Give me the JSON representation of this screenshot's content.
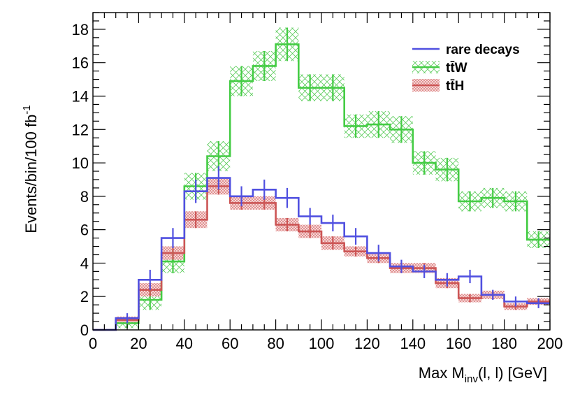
{
  "chart_data": {
    "type": "histogram-step",
    "title": "",
    "xlabel": "Max M",
    "xlabel_sub": "inv",
    "xlabel_tail": "(l, l) [GeV]",
    "ylabel": "Events/bin/100 fb",
    "ylabel_sup": "-1",
    "xlim": [
      0,
      200
    ],
    "ylim": [
      0,
      19
    ],
    "bin_width": 10,
    "bin_edges": [
      0,
      10,
      20,
      30,
      40,
      50,
      60,
      70,
      80,
      90,
      100,
      110,
      120,
      130,
      140,
      150,
      160,
      170,
      180,
      190,
      200
    ],
    "x_ticks": [
      0,
      20,
      40,
      60,
      80,
      100,
      120,
      140,
      160,
      180,
      200
    ],
    "x_tick_labels": [
      "0",
      "20",
      "40",
      "60",
      "80",
      "100",
      "120",
      "140",
      "160",
      "180",
      "200"
    ],
    "y_ticks": [
      0,
      2,
      4,
      6,
      8,
      10,
      12,
      14,
      16,
      18
    ],
    "y_tick_labels": [
      "0",
      "2",
      "4",
      "6",
      "8",
      "10",
      "12",
      "14",
      "16",
      "18"
    ],
    "legend_position": "top-right",
    "series": [
      {
        "name": "rare decays",
        "display": "rare decays",
        "color": "#5050e0",
        "band": "none",
        "values": [
          0.0,
          0.7,
          3.0,
          5.5,
          8.3,
          9.1,
          8.0,
          8.4,
          7.9,
          6.8,
          6.4,
          5.6,
          4.6,
          3.8,
          3.5,
          3.0,
          3.2,
          2.1,
          1.7,
          1.6
        ],
        "errors": [
          0.0,
          0.3,
          0.6,
          0.6,
          0.7,
          0.7,
          0.6,
          0.6,
          0.6,
          0.5,
          0.5,
          0.5,
          0.5,
          0.4,
          0.4,
          0.4,
          0.4,
          0.3,
          0.3,
          0.3
        ]
      },
      {
        "name": "ttW",
        "display": "tt̄W",
        "color": "#44cc44",
        "band": "cross",
        "values": [
          0.0,
          0.4,
          1.8,
          4.1,
          8.6,
          10.4,
          14.9,
          15.8,
          17.1,
          14.5,
          14.5,
          12.2,
          12.3,
          12.0,
          10.0,
          9.6,
          7.7,
          7.9,
          7.7,
          5.4
        ],
        "errors": [
          0.0,
          0.3,
          0.6,
          0.7,
          0.8,
          0.9,
          0.9,
          0.9,
          1.0,
          0.8,
          0.8,
          0.7,
          0.8,
          0.8,
          0.7,
          0.7,
          0.6,
          0.6,
          0.6,
          0.5
        ]
      },
      {
        "name": "ttH",
        "display": "tt̄H",
        "color": "#cc5555",
        "band": "dots",
        "values": [
          0.0,
          0.6,
          2.4,
          4.6,
          6.6,
          8.6,
          7.6,
          7.6,
          6.3,
          5.9,
          5.2,
          4.7,
          4.3,
          3.7,
          3.7,
          2.8,
          1.9,
          2.1,
          1.4,
          1.7
        ],
        "errors": [
          0.0,
          0.2,
          0.4,
          0.4,
          0.5,
          0.5,
          0.4,
          0.4,
          0.4,
          0.4,
          0.4,
          0.3,
          0.3,
          0.3,
          0.3,
          0.3,
          0.25,
          0.25,
          0.2,
          0.2
        ]
      }
    ]
  }
}
